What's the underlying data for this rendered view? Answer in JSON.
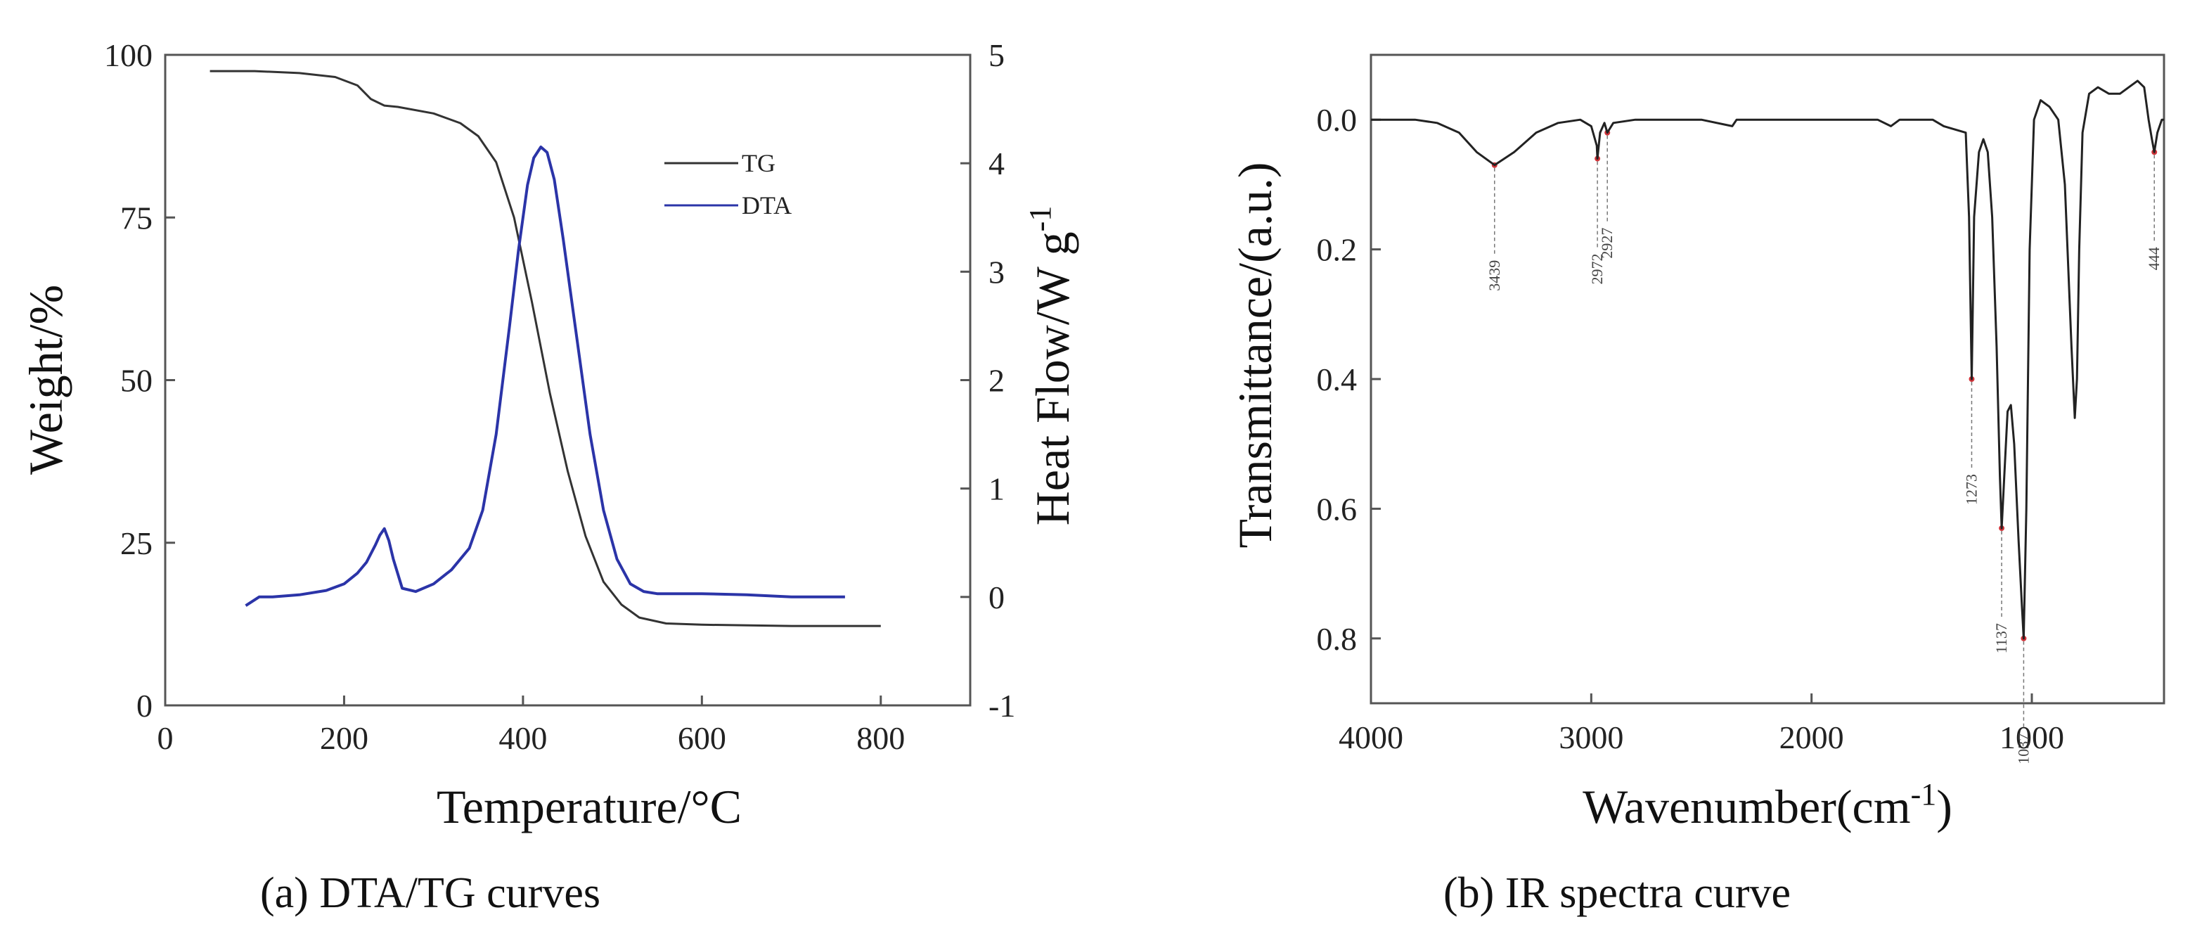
{
  "chart_data": [
    {
      "type": "line",
      "caption": "(a) DTA/TG curves",
      "xlabel": "Temperature/°C",
      "ylabel": "Weight/%",
      "y2label": "Heat Flow/W g",
      "y2label_sup": "-1",
      "xlim": [
        0,
        900
      ],
      "ylim": [
        0,
        100
      ],
      "y2lim": [
        -1,
        5
      ],
      "xticks": [
        "0",
        "200",
        "400",
        "600",
        "800"
      ],
      "xtick_values": [
        0,
        200,
        400,
        600,
        800
      ],
      "yticks": [
        "0",
        "25",
        "50",
        "75",
        "100"
      ],
      "ytick_values": [
        0,
        25,
        50,
        75,
        100
      ],
      "y2ticks": [
        "-1",
        "0",
        "1",
        "2",
        "3",
        "4",
        "5"
      ],
      "y2tick_values": [
        -1,
        0,
        1,
        2,
        3,
        4,
        5
      ],
      "legend": [
        "TG",
        "DTA"
      ],
      "series": [
        {
          "name": "TG",
          "axis": "left",
          "color": "#333333",
          "x": [
            50,
            100,
            150,
            190,
            215,
            230,
            245,
            260,
            300,
            330,
            350,
            370,
            390,
            410,
            430,
            450,
            470,
            490,
            510,
            530,
            560,
            600,
            700,
            800
          ],
          "y": [
            97.5,
            97.5,
            97.2,
            96.6,
            95.3,
            93.2,
            92.2,
            92.0,
            91.0,
            89.5,
            87.5,
            83.5,
            75.0,
            62.0,
            48.0,
            36.0,
            26.0,
            19.0,
            15.5,
            13.5,
            12.6,
            12.4,
            12.2,
            12.2
          ]
        },
        {
          "name": "DTA",
          "axis": "right",
          "color": "#2b34a8",
          "x": [
            90,
            105,
            120,
            150,
            180,
            200,
            215,
            225,
            235,
            240,
            245,
            250,
            255,
            265,
            280,
            300,
            320,
            340,
            355,
            370,
            385,
            395,
            405,
            412,
            420,
            427,
            435,
            445,
            460,
            475,
            490,
            505,
            520,
            535,
            550,
            600,
            650,
            700,
            760
          ],
          "y": [
            -0.08,
            0.0,
            0.0,
            0.02,
            0.06,
            0.12,
            0.22,
            0.32,
            0.48,
            0.57,
            0.63,
            0.52,
            0.35,
            0.08,
            0.05,
            0.12,
            0.25,
            0.45,
            0.8,
            1.5,
            2.5,
            3.2,
            3.8,
            4.05,
            4.15,
            4.1,
            3.85,
            3.3,
            2.4,
            1.5,
            0.8,
            0.35,
            0.12,
            0.05,
            0.03,
            0.03,
            0.02,
            0.0,
            0.0
          ]
        }
      ]
    },
    {
      "type": "line",
      "caption": "(b) IR spectra curve",
      "xlabel": "Wavenumber(cm",
      "xlabel_sup": "-1",
      "xlabel_end": ")",
      "ylabel": "Transmittance/(a.u.)",
      "xlim": [
        4000,
        400
      ],
      "ylim": [
        -0.1,
        0.9
      ],
      "xticks": [
        "4000",
        "3000",
        "2000",
        "1000"
      ],
      "xtick_values": [
        4000,
        3000,
        2000,
        1000
      ],
      "yticks": [
        "0.0",
        "0.2",
        "0.4",
        "0.6",
        "0.8"
      ],
      "ytick_values": [
        0.0,
        0.2,
        0.4,
        0.6,
        0.8
      ],
      "annotations": [
        {
          "label": "3439",
          "x": 3439,
          "y": 0.07
        },
        {
          "label": "2972",
          "x": 2972,
          "y": 0.06
        },
        {
          "label": "2927",
          "x": 2927,
          "y": 0.02
        },
        {
          "label": "1273",
          "x": 1273,
          "y": 0.4
        },
        {
          "label": "1137",
          "x": 1137,
          "y": 0.63
        },
        {
          "label": "1037",
          "x": 1037,
          "y": 0.8
        },
        {
          "label": "444",
          "x": 444,
          "y": 0.05
        }
      ],
      "series": [
        {
          "name": "IR",
          "color": "#222222",
          "x": [
            4000,
            3800,
            3700,
            3600,
            3520,
            3439,
            3350,
            3250,
            3150,
            3050,
            3000,
            2975,
            2972,
            2960,
            2940,
            2927,
            2900,
            2800,
            2500,
            2360,
            2340,
            2300,
            2000,
            1700,
            1640,
            1600,
            1450,
            1400,
            1300,
            1285,
            1273,
            1262,
            1240,
            1220,
            1200,
            1180,
            1160,
            1145,
            1137,
            1125,
            1110,
            1095,
            1080,
            1060,
            1045,
            1037,
            1025,
            1010,
            990,
            960,
            920,
            880,
            850,
            820,
            805,
            795,
            785,
            770,
            740,
            700,
            650,
            600,
            560,
            520,
            490,
            470,
            455,
            444,
            430,
            410,
            400
          ],
          "y": [
            0.0,
            0.0,
            0.005,
            0.02,
            0.05,
            0.07,
            0.05,
            0.02,
            0.005,
            0.0,
            0.01,
            0.04,
            0.06,
            0.02,
            0.005,
            0.02,
            0.005,
            0.0,
            0.0,
            0.01,
            0.0,
            0.0,
            0.0,
            0.0,
            0.01,
            0.0,
            0.0,
            0.01,
            0.02,
            0.15,
            0.4,
            0.15,
            0.05,
            0.03,
            0.05,
            0.15,
            0.35,
            0.55,
            0.63,
            0.55,
            0.45,
            0.44,
            0.5,
            0.65,
            0.75,
            0.8,
            0.6,
            0.2,
            0.0,
            -0.03,
            -0.02,
            0.0,
            0.1,
            0.35,
            0.46,
            0.4,
            0.2,
            0.02,
            -0.04,
            -0.05,
            -0.04,
            -0.04,
            -0.05,
            -0.06,
            -0.05,
            0.0,
            0.03,
            0.05,
            0.02,
            0.0,
            0.0
          ]
        }
      ]
    }
  ]
}
